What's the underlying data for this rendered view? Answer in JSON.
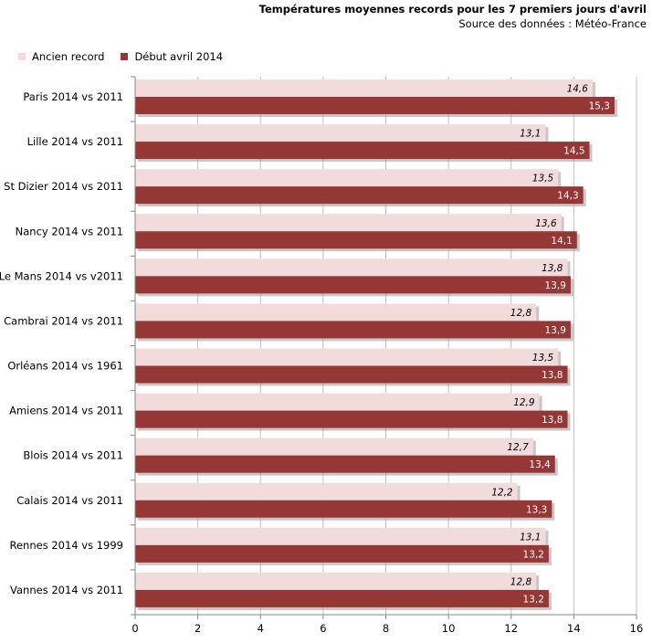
{
  "title": "Températures moyennes records pour les 7 premiers jours d'avril",
  "subtitle": "Source des données : Météo-France",
  "legend": {
    "ancien_label": "Ancien record",
    "debut_label": "Début avril 2014"
  },
  "colors": {
    "ancien": "#f1dcdb",
    "debut": "#953735",
    "shadow": "#9a9a9a",
    "axis": "#868686",
    "grid": "#bfbfbf"
  },
  "chart_data": {
    "type": "bar",
    "orientation": "horizontal",
    "title": "Températures moyennes records pour les 7 premiers jours d'avril",
    "categories": [
      "Paris 2014 vs 2011",
      "Lille 2014 vs 2011",
      "St Dizier 2014 vs 2011",
      "Nancy 2014 vs 2011",
      "Le Mans 2014 vs v2011",
      "Cambrai 2014 vs 2011",
      "Orléans 2014 vs 1961",
      "Amiens 2014 vs 2011",
      "Blois 2014 vs 2011",
      "Calais 2014 vs 2011",
      "Rennes 2014 vs 1999",
      "Vannes 2014 vs 2011"
    ],
    "series": [
      {
        "name": "Ancien record",
        "values": [
          14.6,
          13.1,
          13.5,
          13.6,
          13.8,
          12.8,
          13.5,
          12.9,
          12.7,
          12.2,
          13.1,
          12.8
        ],
        "labels": [
          "14,6",
          "13,1",
          "13,5",
          "13,6",
          "13,8",
          "12,8",
          "13,5",
          "12,9",
          "12,7",
          "12,2",
          "13,1",
          "12,8"
        ]
      },
      {
        "name": "Début avril 2014",
        "values": [
          15.3,
          14.5,
          14.3,
          14.1,
          13.9,
          13.9,
          13.8,
          13.8,
          13.4,
          13.3,
          13.2,
          13.2
        ],
        "labels": [
          "15,3",
          "14,5",
          "14,3",
          "14,1",
          "13,9",
          "13,9",
          "13,8",
          "13,8",
          "13,4",
          "13,3",
          "13,2",
          "13,2"
        ]
      }
    ],
    "xlim": [
      0,
      16
    ],
    "xticks": [
      0,
      2,
      4,
      6,
      8,
      10,
      12,
      14,
      16
    ],
    "xtick_labels": [
      "0",
      "2",
      "4",
      "6",
      "8",
      "10",
      "12",
      "14",
      "16"
    ],
    "grid": true,
    "legend_position": "top-left"
  }
}
